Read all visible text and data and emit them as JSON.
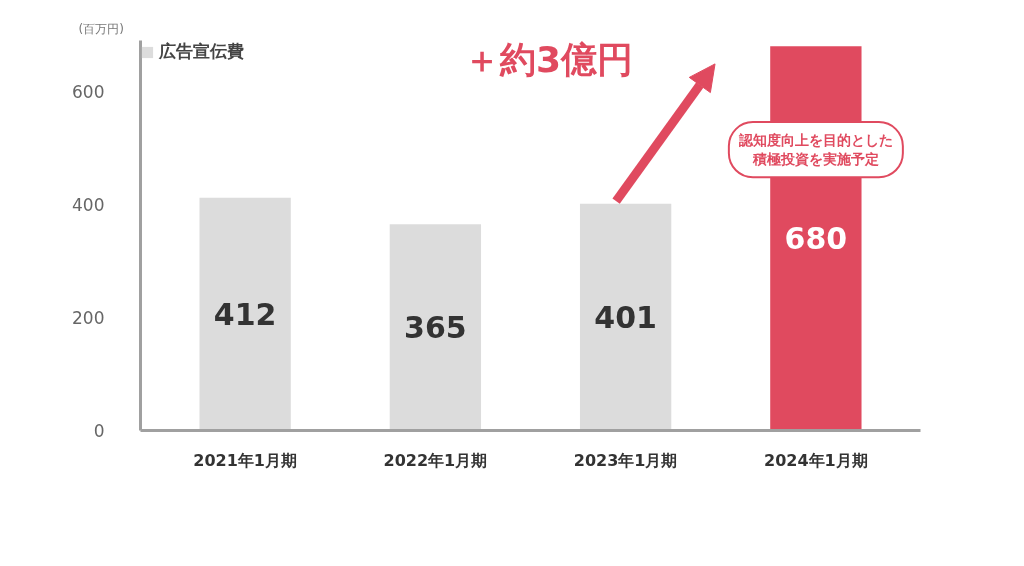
{
  "chart_data": {
    "type": "bar",
    "title": null,
    "ylabel": "(百万円)",
    "categories": [
      "2021年1月期",
      "2022年1月期",
      "2023年1月期",
      "2024年1月期"
    ],
    "series": [
      {
        "name": "広告宣伝費",
        "color": "#dcdcdc",
        "colors": [
          "#dcdcdc",
          "#dcdcdc",
          "#dcdcdc",
          "#e04a5f"
        ],
        "values": [
          412,
          365,
          401,
          680
        ]
      }
    ],
    "ylim": [
      0,
      690
    ],
    "yticks": [
      0,
      200,
      400,
      600
    ],
    "grid": false,
    "legend": "top left",
    "data_labels": true,
    "annotations": [
      "＋約3億円",
      "認知度向上を目的とした積極投資を実施予定"
    ]
  }
}
